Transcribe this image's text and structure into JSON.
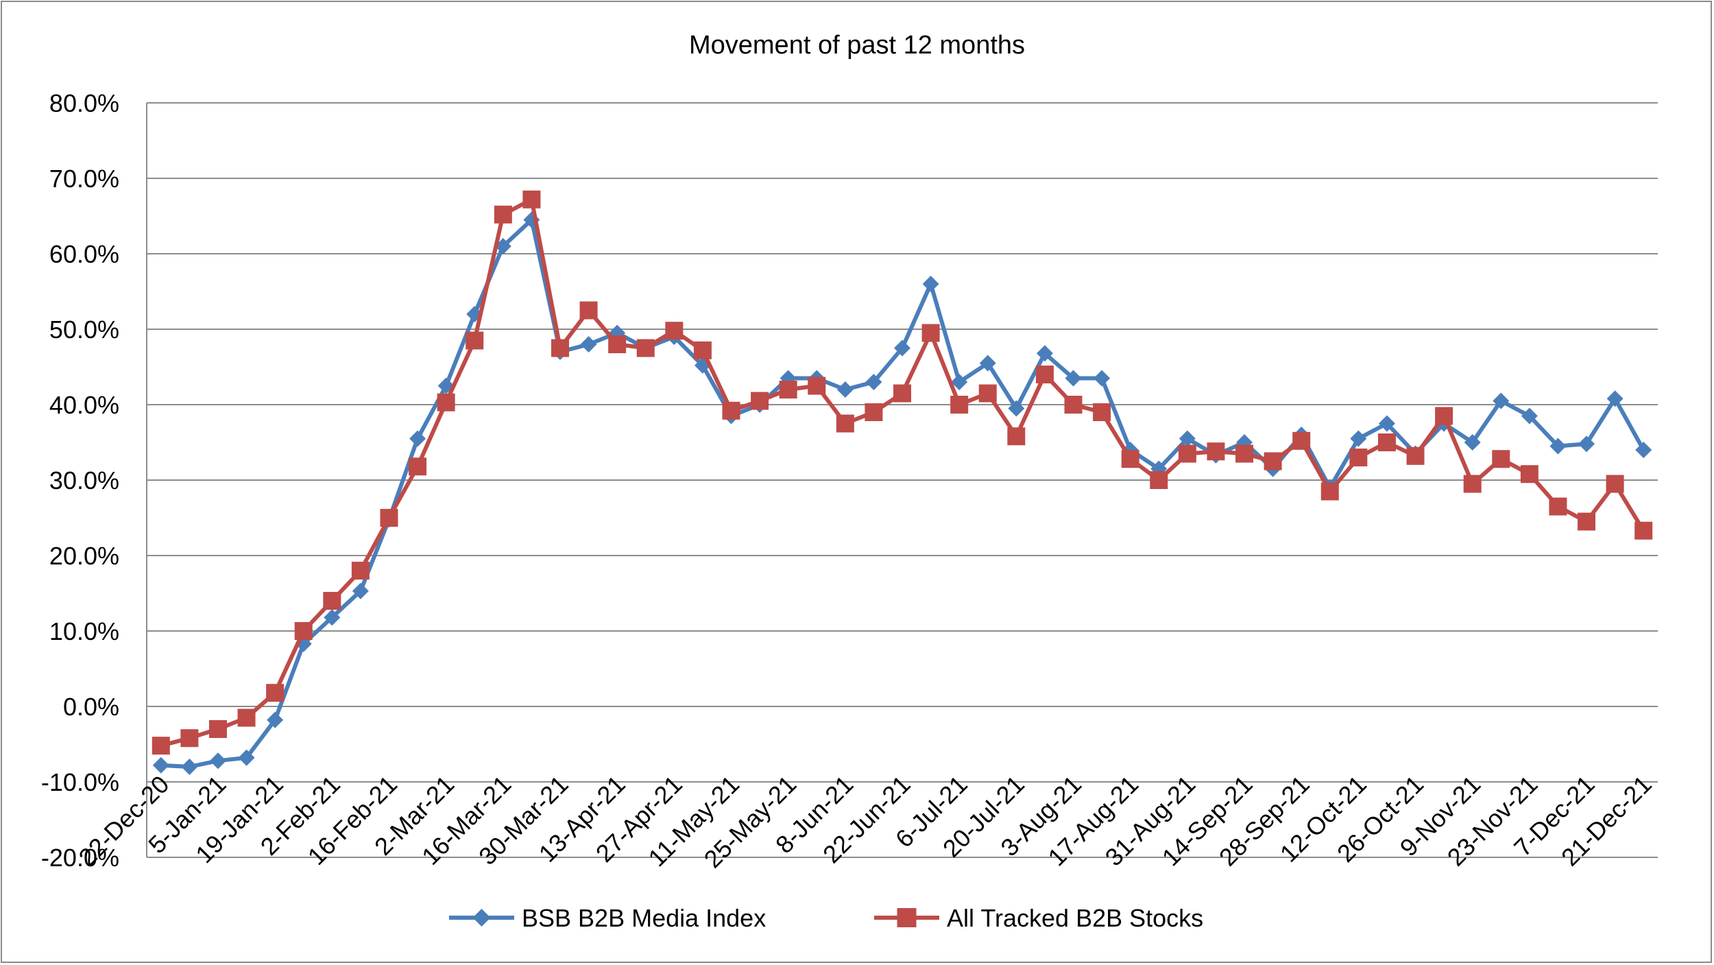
{
  "chart_data": {
    "type": "line",
    "title": "Movement of past 12 months",
    "xlabel": "",
    "ylabel": "",
    "ylim": [
      -0.2,
      0.8
    ],
    "y_ticks": [
      0.8,
      0.7,
      0.6,
      0.5,
      0.4,
      0.3,
      0.2,
      0.1,
      0.0,
      -0.1,
      -0.2
    ],
    "y_tick_labels": [
      "80.0%",
      "70.0%",
      "60.0%",
      "50.0%",
      "40.0%",
      "30.0%",
      "20.0%",
      "10.0%",
      "0.0%",
      "-10.0%",
      "-20.0%"
    ],
    "x_tick_labels": [
      "22-Dec-20",
      "5-Jan-21",
      "19-Jan-21",
      "2-Feb-21",
      "16-Feb-21",
      "2-Mar-21",
      "16-Mar-21",
      "30-Mar-21",
      "13-Apr-21",
      "27-Apr-21",
      "11-May-21",
      "25-May-21",
      "8-Jun-21",
      "22-Jun-21",
      "6-Jul-21",
      "20-Jul-21",
      "3-Aug-21",
      "17-Aug-21",
      "31-Aug-21",
      "14-Sep-21",
      "28-Sep-21",
      "12-Oct-21",
      "26-Oct-21",
      "9-Nov-21",
      "23-Nov-21",
      "7-Dec-21",
      "21-Dec-21"
    ],
    "grid": true,
    "legend_position": "bottom",
    "series": [
      {
        "name": "BSB B2B Media Index",
        "color": "#4a7ebb",
        "marker": "diamond",
        "values": [
          -0.078,
          -0.08,
          -0.072,
          -0.068,
          -0.018,
          0.083,
          0.118,
          0.153,
          0.248,
          0.355,
          0.425,
          0.52,
          0.61,
          0.645,
          0.47,
          0.48,
          0.495,
          0.475,
          0.49,
          0.452,
          0.385,
          0.4,
          0.435,
          0.435,
          0.42,
          0.43,
          0.475,
          0.56,
          0.43,
          0.455,
          0.395,
          0.468,
          0.435,
          0.435,
          0.34,
          0.315,
          0.355,
          0.333,
          0.35,
          0.315,
          0.36,
          0.29,
          0.355,
          0.375,
          0.335,
          0.375,
          0.35,
          0.405,
          0.385,
          0.345,
          0.348,
          0.408,
          0.34
        ]
      },
      {
        "name": "All Tracked B2B Stocks",
        "color": "#be4b48",
        "marker": "square",
        "values": [
          -0.052,
          -0.042,
          -0.03,
          -0.015,
          0.018,
          0.1,
          0.14,
          0.18,
          0.25,
          0.318,
          0.403,
          0.485,
          0.652,
          0.672,
          0.475,
          0.525,
          0.48,
          0.475,
          0.498,
          0.472,
          0.392,
          0.405,
          0.42,
          0.425,
          0.375,
          0.39,
          0.415,
          0.495,
          0.4,
          0.415,
          0.358,
          0.44,
          0.4,
          0.39,
          0.328,
          0.3,
          0.335,
          0.338,
          0.335,
          0.325,
          0.352,
          0.285,
          0.33,
          0.35,
          0.332,
          0.385,
          0.295,
          0.328,
          0.308,
          0.265,
          0.245,
          0.295,
          0.233
        ]
      }
    ]
  }
}
